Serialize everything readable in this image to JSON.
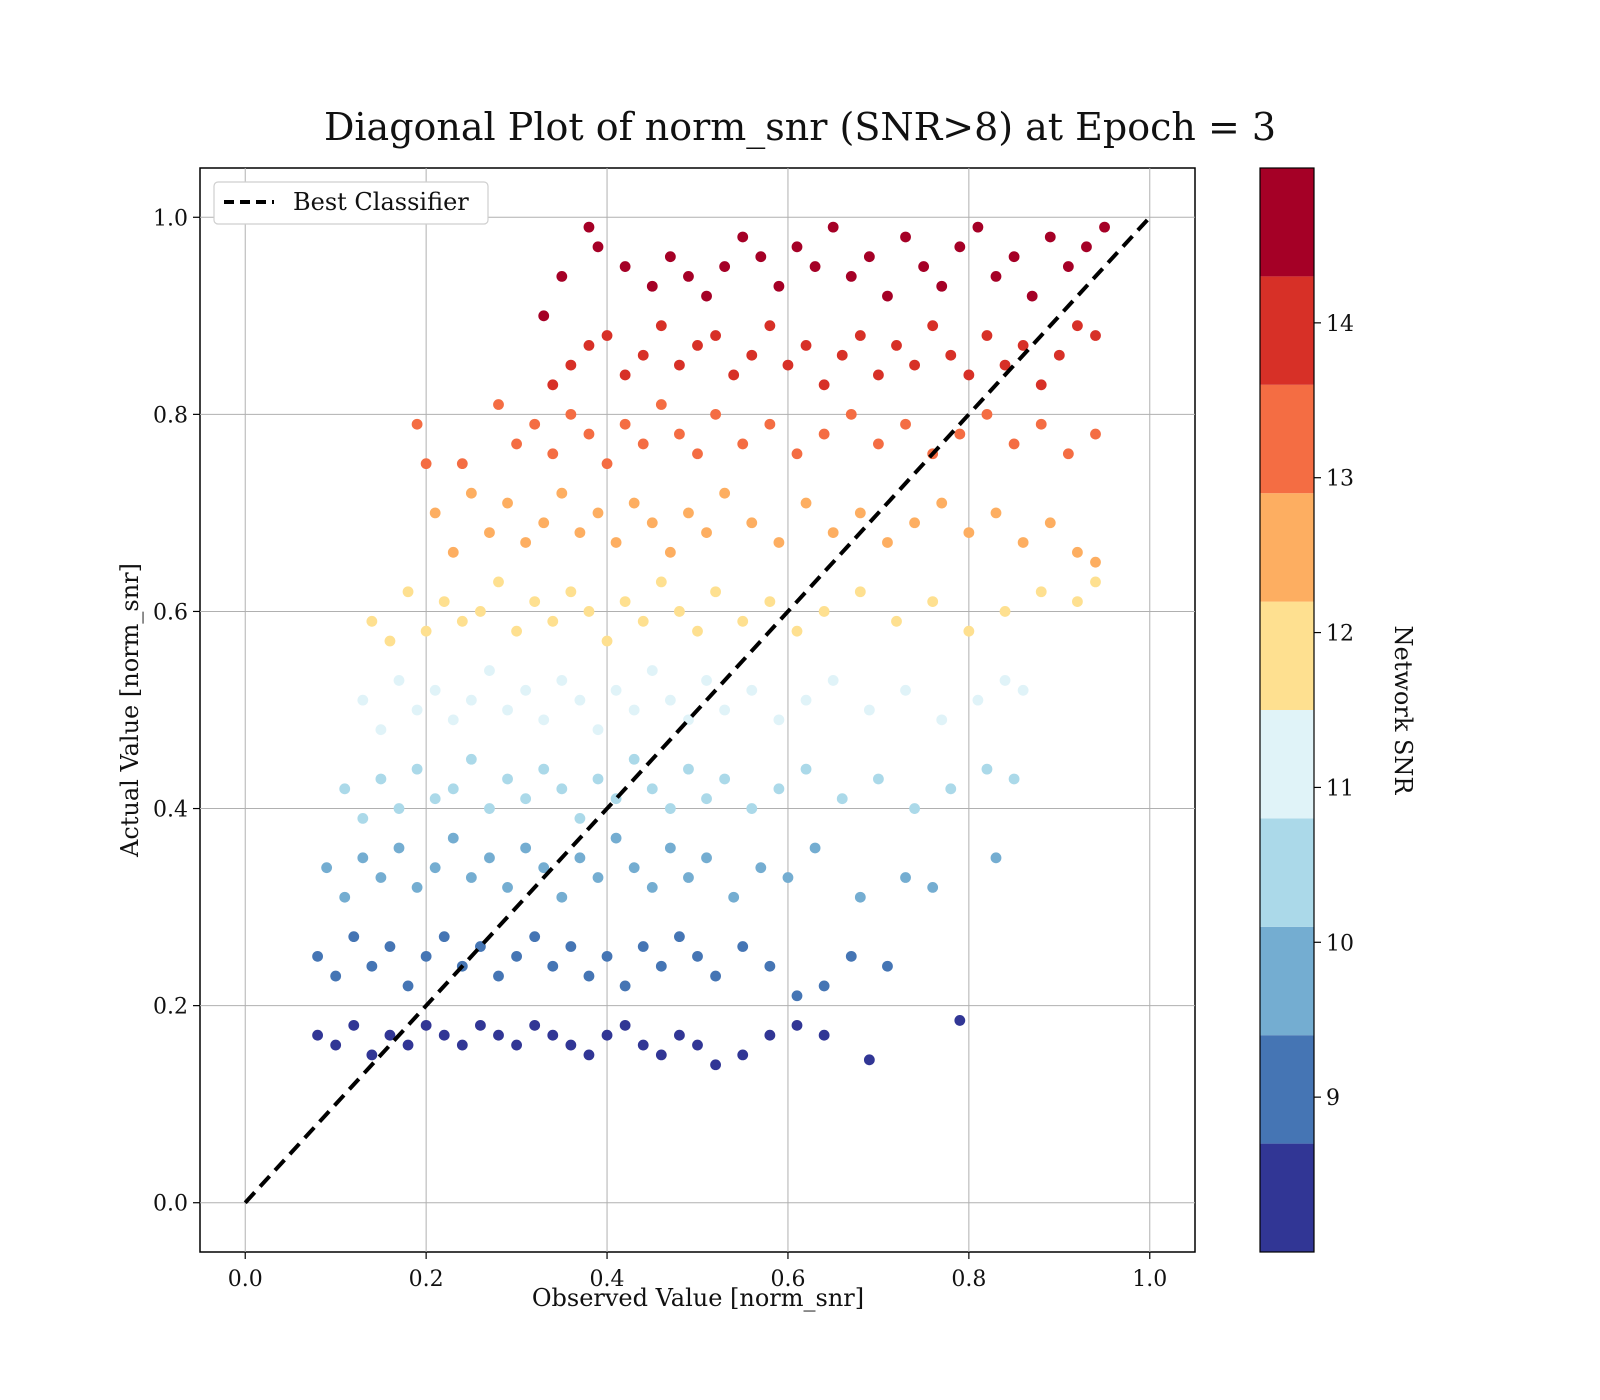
{
  "chart_data": {
    "type": "scatter",
    "title": "Diagonal Plot of norm_snr (SNR>8) at Epoch = 3",
    "xlabel": "Observed Value [norm_snr]",
    "ylabel": "Actual Value [norm_snr]",
    "xlim": [
      -0.05,
      1.05
    ],
    "ylim": [
      -0.05,
      1.05
    ],
    "x_ticks": [
      "0.0",
      "0.2",
      "0.4",
      "0.6",
      "0.8",
      "1.0"
    ],
    "y_ticks": [
      "0.0",
      "0.2",
      "0.4",
      "0.6",
      "0.8",
      "1.0"
    ],
    "grid": true,
    "legend": {
      "placement": "top-left",
      "items": [
        "Best Classifier"
      ]
    },
    "reference_line": {
      "label": "Best Classifier",
      "x": [
        0,
        1
      ],
      "y": [
        0,
        1
      ],
      "style": "dashed",
      "color": "#000000"
    },
    "colorbar": {
      "label": "Network SNR",
      "ticks": [
        "9",
        "10",
        "11",
        "12",
        "13",
        "14"
      ],
      "range": [
        8,
        15
      ],
      "bands": [
        {
          "min": 8,
          "max": 8.7,
          "color": "#313695"
        },
        {
          "min": 8.7,
          "max": 9.4,
          "color": "#4575b4"
        },
        {
          "min": 9.4,
          "max": 10.1,
          "color": "#74add1"
        },
        {
          "min": 10.1,
          "max": 10.8,
          "color": "#abd9e9"
        },
        {
          "min": 10.8,
          "max": 11.5,
          "color": "#e0f3f8"
        },
        {
          "min": 11.5,
          "max": 12.2,
          "color": "#fee090"
        },
        {
          "min": 12.2,
          "max": 12.9,
          "color": "#fdae61"
        },
        {
          "min": 12.9,
          "max": 13.6,
          "color": "#f46d43"
        },
        {
          "min": 13.6,
          "max": 14.3,
          "color": "#d73027"
        },
        {
          "min": 14.3,
          "max": 15,
          "color": "#a50026"
        }
      ]
    },
    "series": [
      {
        "color": "#313695",
        "x": [
          0.08,
          0.1,
          0.12,
          0.14,
          0.16,
          0.18,
          0.2,
          0.22,
          0.24,
          0.26,
          0.28,
          0.3,
          0.32,
          0.34,
          0.36,
          0.38,
          0.4,
          0.42,
          0.44,
          0.46,
          0.48,
          0.5,
          0.52,
          0.55,
          0.58,
          0.61,
          0.64,
          0.69,
          0.79
        ],
        "y": [
          0.17,
          0.16,
          0.18,
          0.15,
          0.17,
          0.16,
          0.18,
          0.17,
          0.16,
          0.18,
          0.17,
          0.16,
          0.18,
          0.17,
          0.16,
          0.15,
          0.17,
          0.18,
          0.16,
          0.15,
          0.17,
          0.16,
          0.14,
          0.15,
          0.17,
          0.18,
          0.17,
          0.145,
          0.185
        ]
      },
      {
        "color": "#4575b4",
        "x": [
          0.08,
          0.1,
          0.12,
          0.14,
          0.16,
          0.18,
          0.2,
          0.22,
          0.24,
          0.26,
          0.28,
          0.3,
          0.32,
          0.34,
          0.36,
          0.38,
          0.4,
          0.42,
          0.44,
          0.46,
          0.48,
          0.5,
          0.52,
          0.55,
          0.58,
          0.61,
          0.64,
          0.67,
          0.71
        ],
        "y": [
          0.25,
          0.23,
          0.27,
          0.24,
          0.26,
          0.22,
          0.25,
          0.27,
          0.24,
          0.26,
          0.23,
          0.25,
          0.27,
          0.24,
          0.26,
          0.23,
          0.25,
          0.22,
          0.26,
          0.24,
          0.27,
          0.25,
          0.23,
          0.26,
          0.24,
          0.21,
          0.22,
          0.25,
          0.24
        ]
      },
      {
        "color": "#74add1",
        "x": [
          0.09,
          0.11,
          0.13,
          0.15,
          0.17,
          0.19,
          0.21,
          0.23,
          0.25,
          0.27,
          0.29,
          0.31,
          0.33,
          0.35,
          0.37,
          0.39,
          0.41,
          0.43,
          0.45,
          0.47,
          0.49,
          0.51,
          0.54,
          0.57,
          0.6,
          0.63,
          0.68,
          0.73,
          0.76,
          0.83
        ],
        "y": [
          0.34,
          0.31,
          0.35,
          0.33,
          0.36,
          0.32,
          0.34,
          0.37,
          0.33,
          0.35,
          0.32,
          0.36,
          0.34,
          0.31,
          0.35,
          0.33,
          0.37,
          0.34,
          0.32,
          0.36,
          0.33,
          0.35,
          0.31,
          0.34,
          0.33,
          0.36,
          0.31,
          0.33,
          0.32,
          0.35
        ]
      },
      {
        "color": "#abd9e9",
        "x": [
          0.11,
          0.13,
          0.15,
          0.17,
          0.19,
          0.21,
          0.23,
          0.25,
          0.27,
          0.29,
          0.31,
          0.33,
          0.35,
          0.37,
          0.39,
          0.41,
          0.43,
          0.45,
          0.47,
          0.49,
          0.51,
          0.53,
          0.56,
          0.59,
          0.62,
          0.66,
          0.7,
          0.74,
          0.78,
          0.82,
          0.85
        ],
        "y": [
          0.42,
          0.39,
          0.43,
          0.4,
          0.44,
          0.41,
          0.42,
          0.45,
          0.4,
          0.43,
          0.41,
          0.44,
          0.42,
          0.39,
          0.43,
          0.41,
          0.45,
          0.42,
          0.4,
          0.44,
          0.41,
          0.43,
          0.4,
          0.42,
          0.44,
          0.41,
          0.43,
          0.4,
          0.42,
          0.44,
          0.43
        ]
      },
      {
        "color": "#e0f3f8",
        "x": [
          0.13,
          0.15,
          0.17,
          0.19,
          0.21,
          0.23,
          0.25,
          0.27,
          0.29,
          0.31,
          0.33,
          0.35,
          0.37,
          0.39,
          0.41,
          0.43,
          0.45,
          0.47,
          0.49,
          0.51,
          0.53,
          0.56,
          0.59,
          0.62,
          0.65,
          0.69,
          0.73,
          0.77,
          0.81,
          0.84,
          0.86
        ],
        "y": [
          0.51,
          0.48,
          0.53,
          0.5,
          0.52,
          0.49,
          0.51,
          0.54,
          0.5,
          0.52,
          0.49,
          0.53,
          0.51,
          0.48,
          0.52,
          0.5,
          0.54,
          0.51,
          0.49,
          0.53,
          0.5,
          0.52,
          0.49,
          0.51,
          0.53,
          0.5,
          0.52,
          0.49,
          0.51,
          0.53,
          0.52
        ]
      },
      {
        "color": "#fee090",
        "x": [
          0.14,
          0.16,
          0.18,
          0.2,
          0.22,
          0.24,
          0.26,
          0.28,
          0.3,
          0.32,
          0.34,
          0.36,
          0.38,
          0.4,
          0.42,
          0.44,
          0.46,
          0.48,
          0.5,
          0.52,
          0.55,
          0.58,
          0.61,
          0.64,
          0.68,
          0.72,
          0.76,
          0.8,
          0.84,
          0.88,
          0.92,
          0.94
        ],
        "y": [
          0.59,
          0.57,
          0.62,
          0.58,
          0.61,
          0.59,
          0.6,
          0.63,
          0.58,
          0.61,
          0.59,
          0.62,
          0.6,
          0.57,
          0.61,
          0.59,
          0.63,
          0.6,
          0.58,
          0.62,
          0.59,
          0.61,
          0.58,
          0.6,
          0.62,
          0.59,
          0.61,
          0.58,
          0.6,
          0.62,
          0.61,
          0.63
        ]
      },
      {
        "color": "#fdae61",
        "x": [
          0.21,
          0.23,
          0.25,
          0.27,
          0.29,
          0.31,
          0.33,
          0.35,
          0.37,
          0.39,
          0.41,
          0.43,
          0.45,
          0.47,
          0.49,
          0.51,
          0.53,
          0.56,
          0.59,
          0.62,
          0.65,
          0.68,
          0.71,
          0.74,
          0.77,
          0.8,
          0.83,
          0.86,
          0.89,
          0.92,
          0.94
        ],
        "y": [
          0.7,
          0.66,
          0.72,
          0.68,
          0.71,
          0.67,
          0.69,
          0.72,
          0.68,
          0.7,
          0.67,
          0.71,
          0.69,
          0.66,
          0.7,
          0.68,
          0.72,
          0.69,
          0.67,
          0.71,
          0.68,
          0.7,
          0.67,
          0.69,
          0.71,
          0.68,
          0.7,
          0.67,
          0.69,
          0.66,
          0.65
        ]
      },
      {
        "color": "#f46d43",
        "x": [
          0.19,
          0.2,
          0.24,
          0.28,
          0.3,
          0.32,
          0.34,
          0.36,
          0.38,
          0.4,
          0.42,
          0.44,
          0.46,
          0.48,
          0.5,
          0.52,
          0.55,
          0.58,
          0.61,
          0.64,
          0.67,
          0.7,
          0.73,
          0.76,
          0.79,
          0.82,
          0.85,
          0.88,
          0.91,
          0.94
        ],
        "y": [
          0.79,
          0.75,
          0.75,
          0.81,
          0.77,
          0.79,
          0.76,
          0.8,
          0.78,
          0.75,
          0.79,
          0.77,
          0.81,
          0.78,
          0.76,
          0.8,
          0.77,
          0.79,
          0.76,
          0.78,
          0.8,
          0.77,
          0.79,
          0.76,
          0.78,
          0.8,
          0.77,
          0.79,
          0.76,
          0.78
        ]
      },
      {
        "color": "#d73027",
        "x": [
          0.34,
          0.36,
          0.38,
          0.4,
          0.42,
          0.44,
          0.46,
          0.48,
          0.5,
          0.52,
          0.54,
          0.56,
          0.58,
          0.6,
          0.62,
          0.64,
          0.66,
          0.68,
          0.7,
          0.72,
          0.74,
          0.76,
          0.78,
          0.8,
          0.82,
          0.84,
          0.86,
          0.88,
          0.9,
          0.92,
          0.94
        ],
        "y": [
          0.83,
          0.85,
          0.87,
          0.88,
          0.84,
          0.86,
          0.89,
          0.85,
          0.87,
          0.88,
          0.84,
          0.86,
          0.89,
          0.85,
          0.87,
          0.83,
          0.86,
          0.88,
          0.84,
          0.87,
          0.85,
          0.89,
          0.86,
          0.84,
          0.88,
          0.85,
          0.87,
          0.83,
          0.86,
          0.89,
          0.88
        ]
      },
      {
        "color": "#a50026",
        "x": [
          0.33,
          0.35,
          0.38,
          0.39,
          0.42,
          0.45,
          0.47,
          0.49,
          0.51,
          0.53,
          0.55,
          0.57,
          0.59,
          0.61,
          0.63,
          0.65,
          0.67,
          0.69,
          0.71,
          0.73,
          0.75,
          0.77,
          0.79,
          0.81,
          0.83,
          0.85,
          0.87,
          0.89,
          0.91,
          0.93,
          0.95
        ],
        "y": [
          0.9,
          0.94,
          0.99,
          0.97,
          0.95,
          0.93,
          0.96,
          0.94,
          0.92,
          0.95,
          0.98,
          0.96,
          0.93,
          0.97,
          0.95,
          0.99,
          0.94,
          0.96,
          0.92,
          0.98,
          0.95,
          0.93,
          0.97,
          0.99,
          0.94,
          0.96,
          0.92,
          0.98,
          0.95,
          0.97,
          0.99
        ]
      }
    ]
  }
}
